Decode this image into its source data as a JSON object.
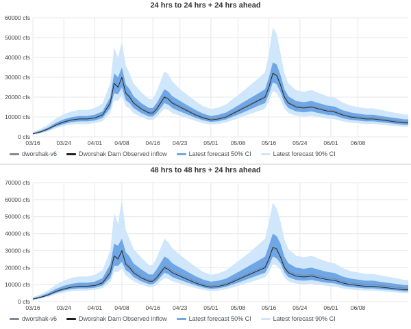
{
  "panels": [
    {
      "title": "24 hrs to 24 hrs + 24 hrs ahead",
      "legend": [
        "dworshak-v6",
        "Dworshak Dam Observed inflow",
        "Latest forecast 50% CI",
        "Latest forecast 90% CI"
      ]
    },
    {
      "title": "48 hrs to 48 hrs + 24 hrs ahead",
      "legend": [
        "dworshak-v6",
        "Dworshak Dam Observed inflow",
        "Latest forecast 50% CI",
        "Latest forecast 90% CI"
      ]
    }
  ],
  "colors": {
    "model": "#7f8a96",
    "observed": "#1f1f1f",
    "ci50": "#6ea6e6",
    "ci90": "#cfe6fb",
    "grid": "#e5e7ea"
  },
  "chart_data": [
    {
      "type": "area",
      "title": "24 hrs to 24 hrs + 24 hrs ahead",
      "y_ticks": [
        "0 cfs",
        "10000 cfs",
        "20000 cfs",
        "30000 cfs",
        "40000 cfs",
        "50000 cfs",
        "60000 cfs"
      ],
      "x_ticks": [
        "03/16",
        "03/24",
        "04/01",
        "04/08",
        "04/16",
        "04/23",
        "05/01",
        "05/08",
        "05/16",
        "05/24",
        "06/01",
        "06/08"
      ],
      "x_tick_days": [
        0,
        8,
        16,
        23,
        31,
        38,
        46,
        53,
        61,
        69,
        77,
        84
      ],
      "ylim": [
        0,
        60000
      ],
      "xlim_days": [
        0,
        97
      ],
      "legend_position": "bottom-left",
      "grid": true,
      "x_days": [
        0,
        2,
        4,
        6,
        8,
        10,
        12,
        14,
        16,
        18,
        20,
        21,
        22,
        23,
        24,
        25,
        26,
        28,
        30,
        31,
        32,
        34,
        35,
        36,
        37,
        38,
        40,
        42,
        44,
        46,
        48,
        50,
        52,
        54,
        56,
        58,
        60,
        61,
        62,
        63,
        64,
        65,
        66,
        68,
        70,
        72,
        74,
        76,
        78,
        80,
        82,
        84,
        86,
        88,
        90,
        92,
        94,
        96,
        97
      ],
      "series": [
        {
          "name": "Dworshak Dam Observed inflow",
          "values": [
            1500,
            2500,
            4000,
            6000,
            7500,
            8500,
            9000,
            9000,
            9500,
            11000,
            17000,
            27000,
            25000,
            30000,
            22000,
            20000,
            17000,
            14000,
            12000,
            12000,
            14000,
            20000,
            19000,
            17000,
            16000,
            15000,
            13000,
            11000,
            9500,
            8500,
            9000,
            10000,
            12000,
            14000,
            16000,
            18000,
            20000,
            25000,
            32000,
            31000,
            26000,
            20000,
            17000,
            15000,
            14500,
            15000,
            14000,
            13000,
            12500,
            11000,
            10000,
            9500,
            9000,
            9000,
            8500,
            8000,
            7500,
            7000,
            7000
          ]
        },
        {
          "name": "dworshak-v6",
          "values": [
            1600,
            2600,
            4100,
            6100,
            7600,
            8600,
            9100,
            9100,
            9600,
            11200,
            17500,
            26500,
            25500,
            29500,
            22500,
            20500,
            17500,
            14500,
            12500,
            12500,
            14500,
            20500,
            19500,
            17500,
            16500,
            15500,
            13500,
            11500,
            10000,
            9000,
            9500,
            10500,
            12500,
            14500,
            16500,
            18500,
            20500,
            25500,
            31500,
            30500,
            26500,
            20500,
            17500,
            15500,
            15000,
            15500,
            14500,
            13500,
            13000,
            11500,
            10500,
            10000,
            9500,
            9500,
            9000,
            8500,
            8000,
            7500,
            7500
          ]
        },
        {
          "name": "Latest forecast 50% CI",
          "lower": [
            1200,
            2100,
            3400,
            5200,
            6500,
            7400,
            7800,
            7800,
            8200,
            9500,
            14500,
            22000,
            21500,
            25000,
            18500,
            17000,
            14500,
            12000,
            10200,
            10200,
            12000,
            17000,
            16200,
            14500,
            13600,
            12800,
            11200,
            9600,
            8300,
            7500,
            7900,
            8800,
            10400,
            12000,
            13700,
            15400,
            17000,
            21500,
            27500,
            26500,
            22500,
            17200,
            14500,
            12800,
            12300,
            12800,
            11900,
            11100,
            10700,
            9400,
            8600,
            8200,
            7800,
            7800,
            7300,
            6900,
            6500,
            6000,
            6000
          ],
          "upper": [
            1900,
            3100,
            4800,
            7100,
            8800,
            9900,
            10500,
            10500,
            11100,
            12800,
            20000,
            32000,
            30000,
            35000,
            26500,
            24000,
            20500,
            17000,
            14500,
            14500,
            17000,
            24000,
            22800,
            20500,
            19300,
            18100,
            15800,
            13500,
            11700,
            10500,
            11100,
            12300,
            14600,
            17000,
            19300,
            21600,
            24000,
            30000,
            37500,
            36500,
            31000,
            24000,
            20500,
            18000,
            17400,
            18100,
            16900,
            15800,
            15200,
            13400,
            12300,
            11700,
            11100,
            11100,
            10500,
            9900,
            9400,
            8800,
            8800
          ]
        },
        {
          "name": "Latest forecast 90% CI",
          "lower": [
            900,
            1700,
            2800,
            4300,
            5400,
            6200,
            6500,
            6500,
            6900,
            7900,
            12000,
            18500,
            18000,
            21000,
            15500,
            14200,
            12000,
            10000,
            8500,
            8500,
            10000,
            14200,
            13500,
            12000,
            11300,
            10600,
            9300,
            8000,
            6900,
            6200,
            6500,
            7300,
            8600,
            10000,
            11400,
            12800,
            14200,
            18000,
            23000,
            22000,
            18700,
            14300,
            12000,
            10600,
            10200,
            10600,
            9900,
            9200,
            8900,
            7800,
            7100,
            6800,
            6500,
            6500,
            6100,
            5700,
            5400,
            5000,
            5000
          ],
          "upper": [
            2400,
            4000,
            6200,
            9200,
            11400,
            12800,
            13600,
            13600,
            14500,
            16800,
            27000,
            45000,
            40000,
            48000,
            36000,
            32000,
            27000,
            22500,
            19000,
            19000,
            23000,
            33000,
            31500,
            28000,
            26000,
            24000,
            21000,
            18000,
            15500,
            14000,
            14800,
            16500,
            19500,
            22500,
            25800,
            29000,
            32500,
            42000,
            55000,
            52000,
            42000,
            32000,
            27000,
            23500,
            22700,
            23500,
            22000,
            20500,
            19700,
            17300,
            15800,
            15000,
            14300,
            14300,
            13500,
            12700,
            12000,
            11200,
            11200
          ]
        }
      ]
    },
    {
      "type": "area",
      "title": "48 hrs to 48 hrs + 24 hrs ahead",
      "y_ticks": [
        "0 cfs",
        "10000 cfs",
        "20000 cfs",
        "30000 cfs",
        "40000 cfs",
        "50000 cfs",
        "60000 cfs",
        "70000 cfs"
      ],
      "x_ticks": [
        "03/16",
        "03/24",
        "04/01",
        "04/08",
        "04/16",
        "04/23",
        "05/01",
        "05/08",
        "05/16",
        "05/24",
        "06/01",
        "06/08"
      ],
      "x_tick_days": [
        0,
        8,
        16,
        23,
        31,
        38,
        46,
        53,
        61,
        69,
        77,
        84
      ],
      "ylim": [
        0,
        70000
      ],
      "xlim_days": [
        0,
        97
      ],
      "legend_position": "bottom-left",
      "grid": true,
      "x_days": [
        0,
        2,
        4,
        6,
        8,
        10,
        12,
        14,
        16,
        18,
        20,
        21,
        22,
        23,
        24,
        25,
        26,
        28,
        30,
        31,
        32,
        34,
        35,
        36,
        37,
        38,
        40,
        42,
        44,
        46,
        48,
        50,
        52,
        54,
        56,
        58,
        60,
        61,
        62,
        63,
        64,
        65,
        66,
        68,
        70,
        72,
        74,
        76,
        78,
        80,
        82,
        84,
        86,
        88,
        90,
        92,
        94,
        96,
        97
      ],
      "series": [
        {
          "name": "Dworshak Dam Observed inflow",
          "values": [
            1500,
            2500,
            4000,
            6000,
            7500,
            8500,
            9000,
            9000,
            9500,
            11000,
            17000,
            27000,
            25000,
            30000,
            22000,
            20000,
            17000,
            14000,
            12000,
            12000,
            14000,
            20000,
            19000,
            17000,
            16000,
            15000,
            13000,
            11000,
            9500,
            8500,
            9000,
            10000,
            12000,
            14000,
            16000,
            18000,
            20000,
            25000,
            32000,
            31000,
            26000,
            20000,
            17000,
            15000,
            14500,
            15000,
            14000,
            13000,
            12500,
            11000,
            10000,
            9500,
            9000,
            9000,
            8500,
            8000,
            7500,
            7000,
            7000
          ]
        },
        {
          "name": "dworshak-v6",
          "values": [
            1600,
            2700,
            4200,
            6200,
            7700,
            8700,
            9200,
            9200,
            9700,
            11500,
            18000,
            26000,
            26000,
            29000,
            23000,
            21000,
            18000,
            15000,
            12800,
            12800,
            14800,
            21000,
            20000,
            18000,
            17000,
            16000,
            14000,
            12000,
            10300,
            9300,
            9800,
            10800,
            12800,
            14800,
            16800,
            18800,
            21000,
            26000,
            31000,
            30000,
            27000,
            21000,
            18000,
            16000,
            15500,
            16000,
            15000,
            14000,
            13500,
            12000,
            11000,
            10500,
            10000,
            10000,
            9500,
            9000,
            8500,
            8000,
            8000
          ]
        },
        {
          "name": "Latest forecast 50% CI",
          "lower": [
            1200,
            2100,
            3400,
            5200,
            6500,
            7400,
            7800,
            7800,
            8200,
            9500,
            14000,
            21000,
            21000,
            23500,
            18500,
            17000,
            14500,
            12000,
            10200,
            10200,
            12000,
            17000,
            16200,
            14500,
            13600,
            12800,
            11200,
            9600,
            8300,
            7500,
            7900,
            8800,
            10400,
            12000,
            13700,
            15400,
            17000,
            21000,
            26500,
            25500,
            22500,
            17200,
            14500,
            12800,
            12300,
            12800,
            11900,
            11100,
            10700,
            9400,
            8600,
            8200,
            7800,
            7800,
            7300,
            6900,
            6500,
            6000,
            6000
          ],
          "upper": [
            2000,
            3300,
            5100,
            7500,
            9300,
            10500,
            11100,
            11100,
            11800,
            13800,
            22000,
            34000,
            33000,
            37000,
            29000,
            26500,
            22500,
            19000,
            16000,
            16000,
            19000,
            26500,
            25200,
            22600,
            21300,
            20000,
            17500,
            15000,
            13000,
            11700,
            12300,
            13600,
            16100,
            18600,
            21200,
            23800,
            26500,
            33000,
            40000,
            38500,
            34000,
            26500,
            22600,
            20000,
            19300,
            20000,
            18700,
            17500,
            16800,
            14800,
            13600,
            13000,
            12300,
            12300,
            11600,
            11000,
            10400,
            9700,
            9700
          ]
        },
        {
          "name": "Latest forecast 90% CI",
          "lower": [
            900,
            1700,
            2800,
            4300,
            5400,
            6200,
            6500,
            6500,
            6900,
            7900,
            11500,
            17500,
            17500,
            19500,
            15300,
            14000,
            12000,
            10000,
            8500,
            8500,
            10000,
            14000,
            13400,
            12000,
            11300,
            10600,
            9300,
            8000,
            6900,
            6200,
            6500,
            7300,
            8600,
            10000,
            11400,
            12800,
            14200,
            17500,
            22000,
            21200,
            18700,
            14300,
            12000,
            10600,
            10200,
            10600,
            9900,
            9200,
            8900,
            7800,
            7100,
            6800,
            6500,
            6500,
            6100,
            5700,
            5400,
            5000,
            5000
          ],
          "upper": [
            2600,
            4300,
            6700,
            10000,
            12400,
            14000,
            14800,
            14800,
            15800,
            18500,
            30000,
            52000,
            46000,
            60000,
            42000,
            37000,
            31000,
            26000,
            21500,
            21500,
            26000,
            37000,
            35000,
            31500,
            29500,
            27500,
            24000,
            20500,
            17500,
            15800,
            16700,
            18500,
            22000,
            25500,
            29000,
            33000,
            37000,
            47000,
            58000,
            55000,
            47000,
            36500,
            31000,
            27000,
            26000,
            27000,
            25200,
            23500,
            22500,
            19800,
            18000,
            17200,
            16300,
            16300,
            15400,
            14600,
            13700,
            12800,
            12800
          ]
        }
      ]
    }
  ]
}
